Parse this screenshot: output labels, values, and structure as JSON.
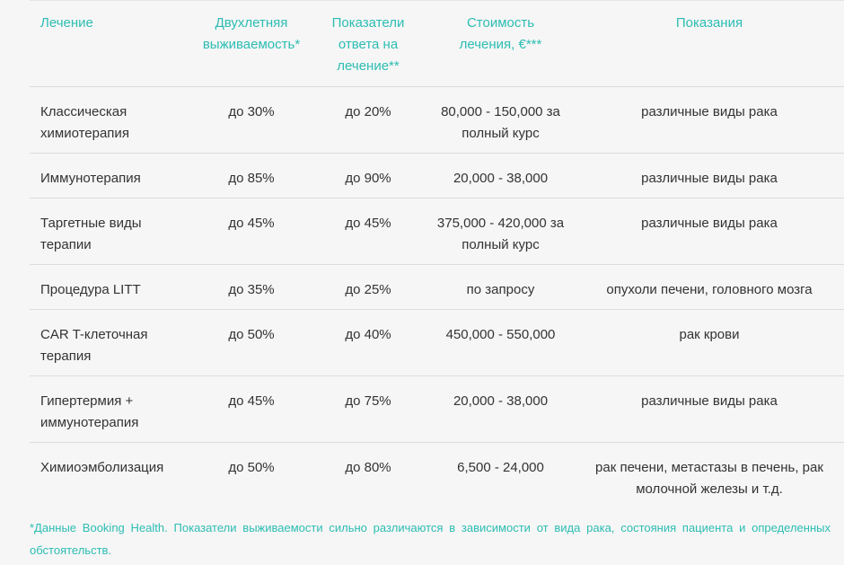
{
  "table": {
    "header": [
      [
        "Лечение"
      ],
      [
        "Двухлетняя",
        "выживаемость*"
      ],
      [
        "Показатели",
        "ответа на",
        "лечение**"
      ],
      [
        "Стоимость",
        "лечения, €***"
      ],
      [
        "Показания"
      ]
    ],
    "rows": [
      [
        "Классическая химиотерапия",
        "до 30%",
        "до 20%",
        "80,000 - 150,000 за полный курс",
        "различные виды рака"
      ],
      [
        "Иммунотерапия",
        "до 85%",
        "до 90%",
        "20,000 - 38,000",
        "различные виды рака"
      ],
      [
        "Таргетные виды терапии",
        "до 45%",
        "до 45%",
        "375,000 - 420,000 за полный курс",
        "различные виды рака"
      ],
      [
        "Процедура LITT",
        "до 35%",
        "до 25%",
        "по запросу",
        "опухоли печени, головного мозга"
      ],
      [
        "CAR T-клеточная терапия",
        "до 50%",
        "до 40%",
        "450,000 - 550,000",
        "рак крови"
      ],
      [
        "Гипертермия + иммунотерапия",
        "до 45%",
        "до 75%",
        "20,000 - 38,000",
        "различные виды рака"
      ],
      [
        "Химиоэмболизация",
        "до 50%",
        "до 80%",
        "6,500 - 24,000",
        "рак печени, метастазы в печень, рак молочной железы и т.д."
      ]
    ]
  },
  "footnote": "*Данные Booking Health. Показатели выживаемости сильно различаются в зависимости от вида рака, состояния пациента и определенных обстоятельств."
}
